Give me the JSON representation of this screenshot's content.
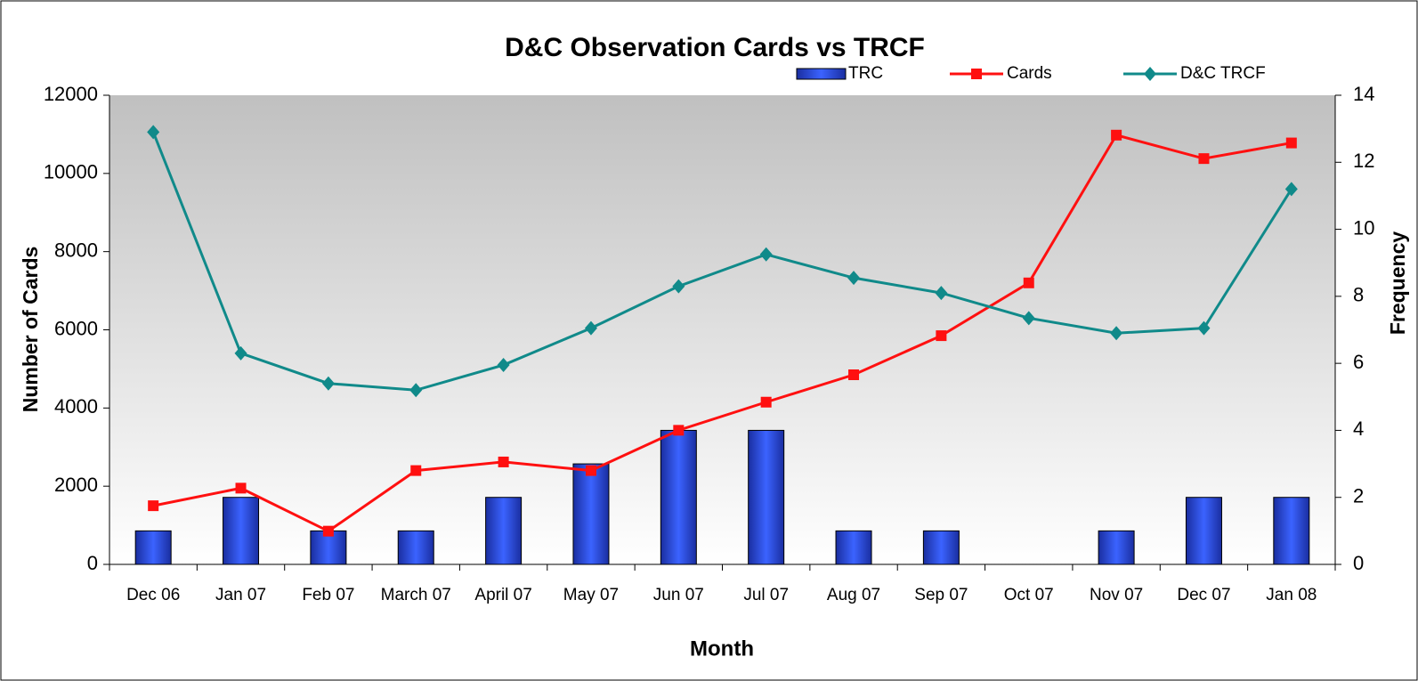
{
  "chart_data": {
    "type": "combo",
    "title": "D&C Observation Cards vs TRCF",
    "x_label": "Month",
    "y_label": "Number of Cards",
    "y2_label": "Frequency",
    "categories": [
      "Dec 06",
      "Jan 07",
      "Feb 07",
      "March 07",
      "April 07",
      "May 07",
      "Jun 07",
      "Jul 07",
      "Aug 07",
      "Sep 07",
      "Oct 07",
      "Nov 07",
      "Dec 07",
      "Jan 08"
    ],
    "ylim": [
      0,
      12000
    ],
    "yticks": [
      0,
      2000,
      4000,
      6000,
      8000,
      10000,
      12000
    ],
    "y2lim": [
      0,
      14
    ],
    "y2ticks": [
      0,
      2,
      4,
      6,
      8,
      10,
      12,
      14
    ],
    "series": [
      {
        "name": "TRC",
        "type": "bar",
        "axis": "y2",
        "color": "#3355ee",
        "values": [
          1,
          2,
          1,
          1,
          2,
          3,
          4,
          4,
          1,
          1,
          0,
          1,
          2,
          2
        ]
      },
      {
        "name": "Cards",
        "type": "line",
        "marker": "square",
        "color": "#ff1010",
        "values": [
          1500,
          1950,
          850,
          2400,
          2620,
          2400,
          3430,
          4150,
          4850,
          5850,
          7200,
          10980,
          10380,
          10780
        ]
      },
      {
        "name": "D&C TRCF",
        "type": "line",
        "marker": "diamond",
        "axis": "y2",
        "color": "#108a8a",
        "values": [
          12.9,
          6.3,
          5.4,
          5.2,
          5.95,
          7.05,
          8.3,
          9.25,
          8.55,
          8.1,
          7.35,
          6.9,
          7.05,
          11.2
        ]
      }
    ]
  }
}
